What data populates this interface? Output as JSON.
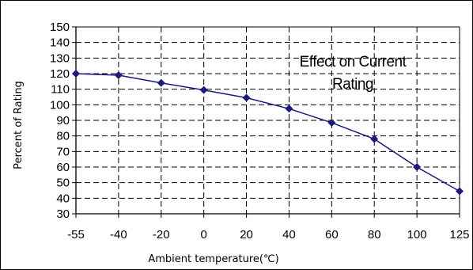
{
  "chart_data": {
    "type": "line",
    "x": [
      -55,
      -40,
      -20,
      0,
      20,
      40,
      60,
      80,
      100,
      125
    ],
    "series": [
      {
        "values": [
          120,
          119,
          114,
          109.5,
          104.5,
          97.5,
          88.5,
          78,
          60,
          44.5
        ],
        "color": "#1a1a80"
      }
    ],
    "x_ticks": [
      "-55",
      "-40",
      "-20",
      "0",
      "20",
      "40",
      "60",
      "80",
      "100",
      "125"
    ],
    "y_ticks": [
      30,
      40,
      50,
      60,
      70,
      80,
      90,
      100,
      110,
      120,
      130,
      140,
      150
    ],
    "ylim": [
      30,
      150
    ],
    "xlabel": "Ambient temperature(℃)",
    "ylabel": "Percent of Rating",
    "annotation": [
      "Effect on Current",
      "Rating"
    ],
    "grid": true,
    "grid_style": "dashed",
    "marker": "diamond"
  }
}
